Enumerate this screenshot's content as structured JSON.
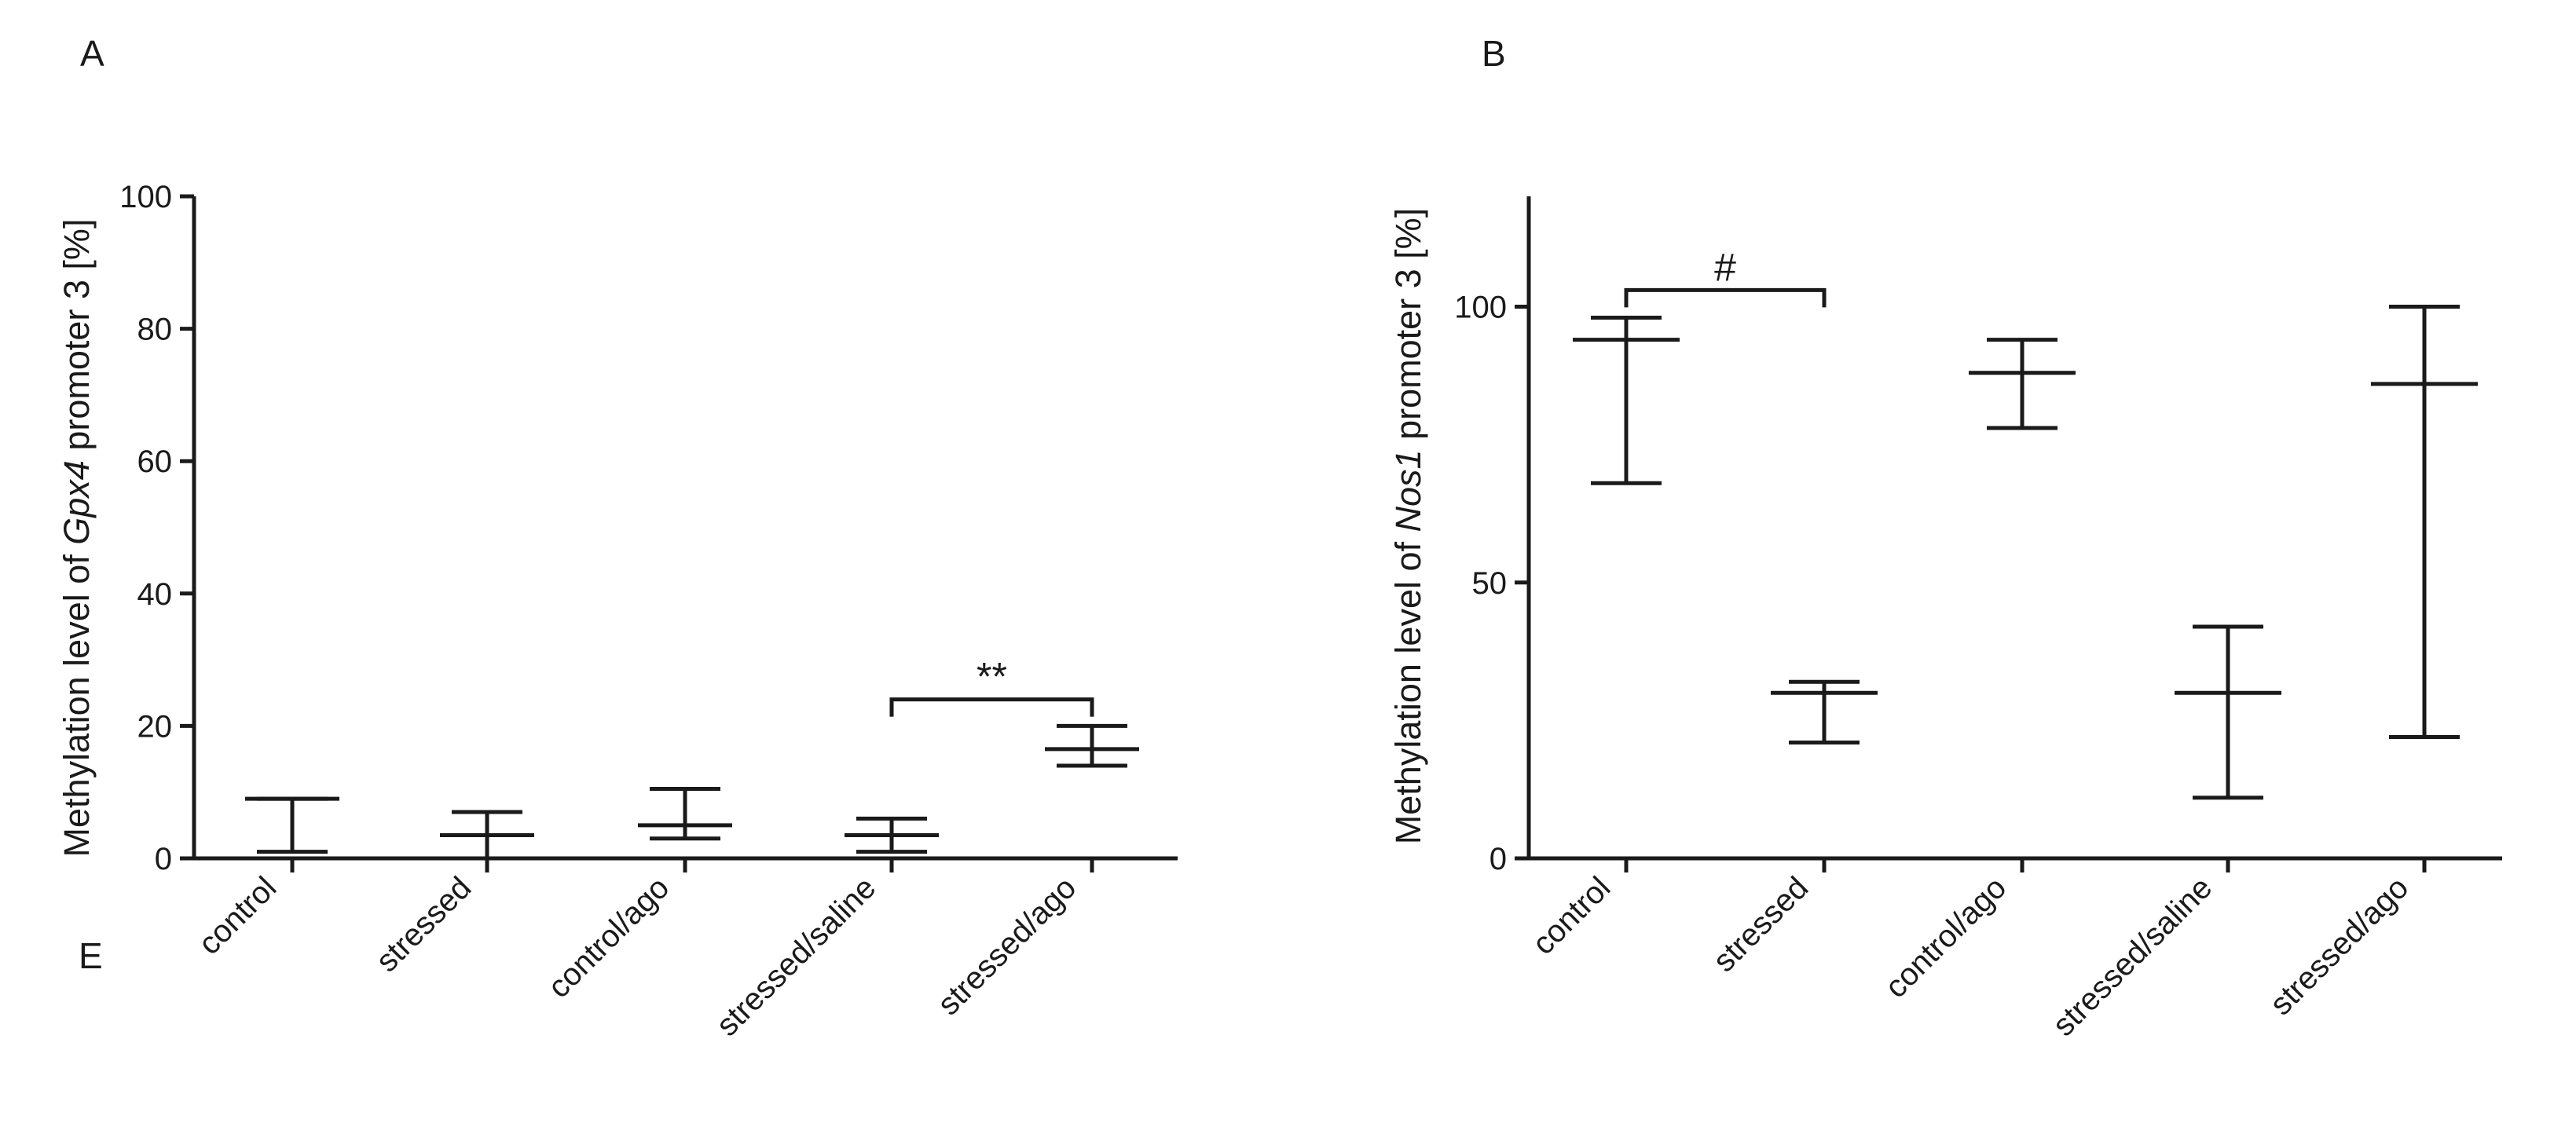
{
  "chart_data": [
    {
      "type": "scatter",
      "panel": "A",
      "ylabel_prefix": "Methylation level of ",
      "ylabel_gene": "Gpx4",
      "ylabel_suffix": " promoter 3 [%]",
      "categories": [
        "control",
        "stressed",
        "control/ago",
        "stressed/saline",
        "stressed/ago"
      ],
      "series": [
        {
          "name": "median",
          "values": [
            9,
            3.5,
            5,
            3.5,
            16.5
          ]
        },
        {
          "name": "upper",
          "values": [
            9,
            7,
            10.5,
            6,
            20
          ]
        },
        {
          "name": "lower",
          "values": [
            1,
            0,
            3,
            1,
            14
          ]
        }
      ],
      "ylim": [
        0,
        100
      ],
      "yticks": [
        0,
        20,
        40,
        60,
        80,
        100
      ],
      "stray_label": "E",
      "annotations": [
        {
          "text": "**",
          "from": "stressed/saline",
          "to": "stressed/ago",
          "y": 24
        }
      ]
    },
    {
      "type": "scatter",
      "panel": "B",
      "ylabel_prefix": "Methylation level of ",
      "ylabel_gene": "Nos1",
      "ylabel_suffix": " promoter 3 [%]",
      "categories": [
        "control",
        "stressed",
        "control/ago",
        "stressed/saline",
        "stressed/ago"
      ],
      "series": [
        {
          "name": "median",
          "values": [
            94,
            30,
            88,
            30,
            86
          ]
        },
        {
          "name": "upper",
          "values": [
            98,
            32,
            94,
            42,
            100
          ]
        },
        {
          "name": "lower",
          "values": [
            68,
            21,
            78,
            11,
            22
          ]
        }
      ],
      "ylim": [
        0,
        120
      ],
      "yticks": [
        0,
        50,
        100
      ],
      "annotations": [
        {
          "text": "#",
          "from": "control",
          "to": "stressed",
          "y": 103
        }
      ]
    }
  ]
}
